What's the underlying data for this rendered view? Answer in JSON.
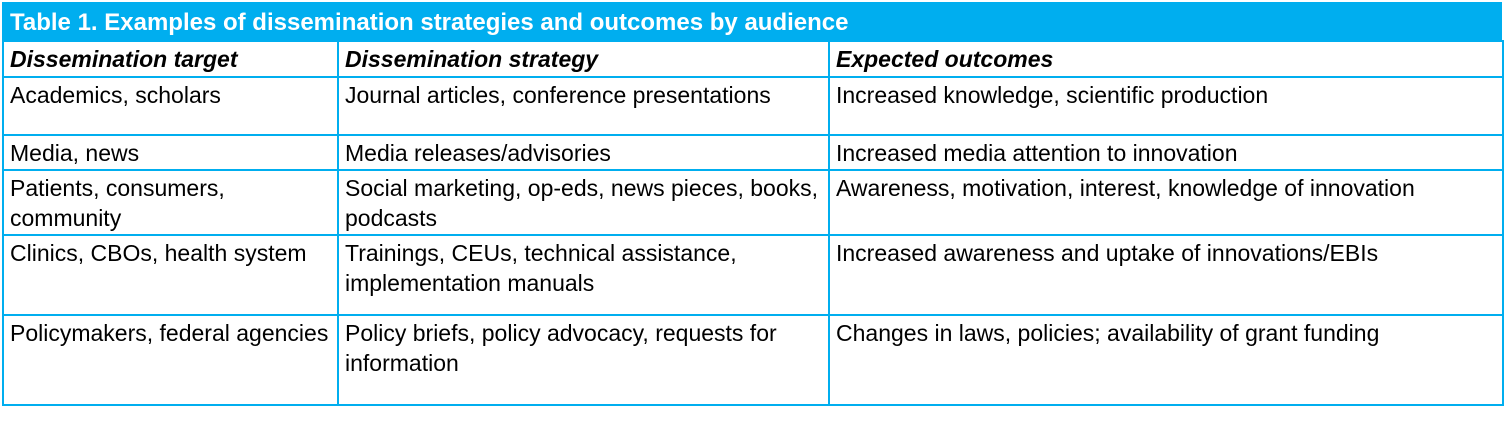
{
  "title": "Table 1. Examples of dissemination strategies and outcomes by audience",
  "headers": [
    "Dissemination target",
    "Dissemination strategy",
    "Expected outcomes"
  ],
  "rows": [
    [
      "Academics, scholars",
      "Journal articles, conference presentations",
      "Increased knowledge, scientific production"
    ],
    [
      "Media, news",
      "Media releases/advisories",
      "Increased media attention to innovation"
    ],
    [
      "Patients, consumers, community",
      "Social marketing, op-eds, news pieces, books, podcasts",
      "Awareness, motivation, interest, knowledge of innovation"
    ],
    [
      "Clinics, CBOs, health system",
      "Trainings, CEUs, technical assistance, implementation manuals",
      "Increased awareness and uptake of innovations/EBIs"
    ],
    [
      "Policymakers, federal agencies",
      "Policy briefs, policy advocacy, requests for information",
      "Changes in laws, policies; availability of grant funding"
    ]
  ],
  "colors": {
    "accent": "#00aeef",
    "title_text": "#ffffff",
    "body_text": "#000000"
  }
}
